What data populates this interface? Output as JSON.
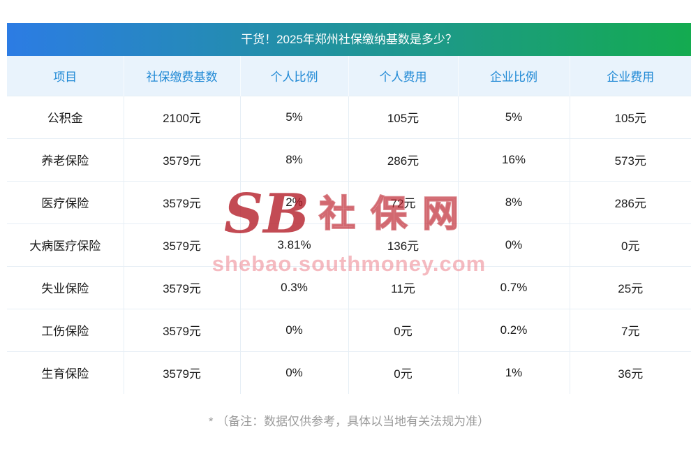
{
  "chart_data": {
    "type": "table",
    "title": "干货！2025年郑州社保缴纳基数是多少？",
    "columns": [
      "项目",
      "社保缴费基数",
      "个人比例",
      "个人费用",
      "企业比例",
      "企业费用"
    ],
    "rows": [
      [
        "公积金",
        "2100元",
        "5%",
        "105元",
        "5%",
        "105元"
      ],
      [
        "养老保险",
        "3579元",
        "8%",
        "286元",
        "16%",
        "573元"
      ],
      [
        "医疗保险",
        "3579元",
        "2%",
        "72元",
        "8%",
        "286元"
      ],
      [
        "大病医疗保险",
        "3579元",
        "3.81%",
        "136元",
        "0%",
        "0元"
      ],
      [
        "失业保险",
        "3579元",
        "0.3%",
        "11元",
        "0.7%",
        "25元"
      ],
      [
        "工伤保险",
        "3579元",
        "0%",
        "0元",
        "0.2%",
        "7元"
      ],
      [
        "生育保险",
        "3579元",
        "0%",
        "0元",
        "1%",
        "36元"
      ]
    ]
  },
  "note": "* （备注：数据仅供参考，具体以当地有关法规为准）",
  "watermark": {
    "logo": "SB",
    "text": "社保网",
    "url": "shebao.southmoney.com"
  },
  "colors": {
    "title_gradient_start": "#2c7ce4",
    "title_gradient_end": "#14ab50",
    "header_bg": "#e9f3fc",
    "header_text": "#2089d5",
    "border": "#e6eef5",
    "note_text": "#9b9b9b"
  }
}
